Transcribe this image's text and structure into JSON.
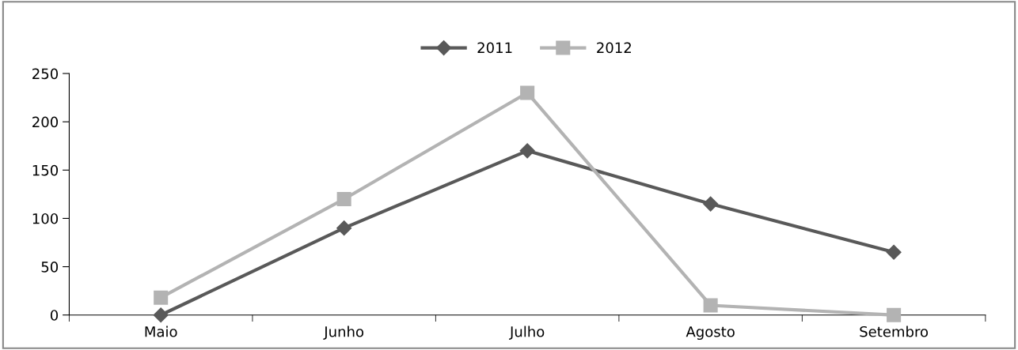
{
  "chart_data": {
    "type": "line",
    "categories": [
      "Maio",
      "Junho",
      "Julho",
      "Agosto",
      "Setembro"
    ],
    "series": [
      {
        "name": "2011",
        "color": "#595959",
        "marker": "diamond",
        "values": [
          0,
          90,
          170,
          115,
          65
        ]
      },
      {
        "name": "2012",
        "color": "#b3b3b3",
        "marker": "square",
        "values": [
          18,
          120,
          230,
          10,
          0
        ]
      }
    ],
    "ylim": [
      0,
      250
    ],
    "yticks": [
      0,
      50,
      100,
      150,
      200,
      250
    ],
    "grid": false,
    "legend": "top"
  }
}
